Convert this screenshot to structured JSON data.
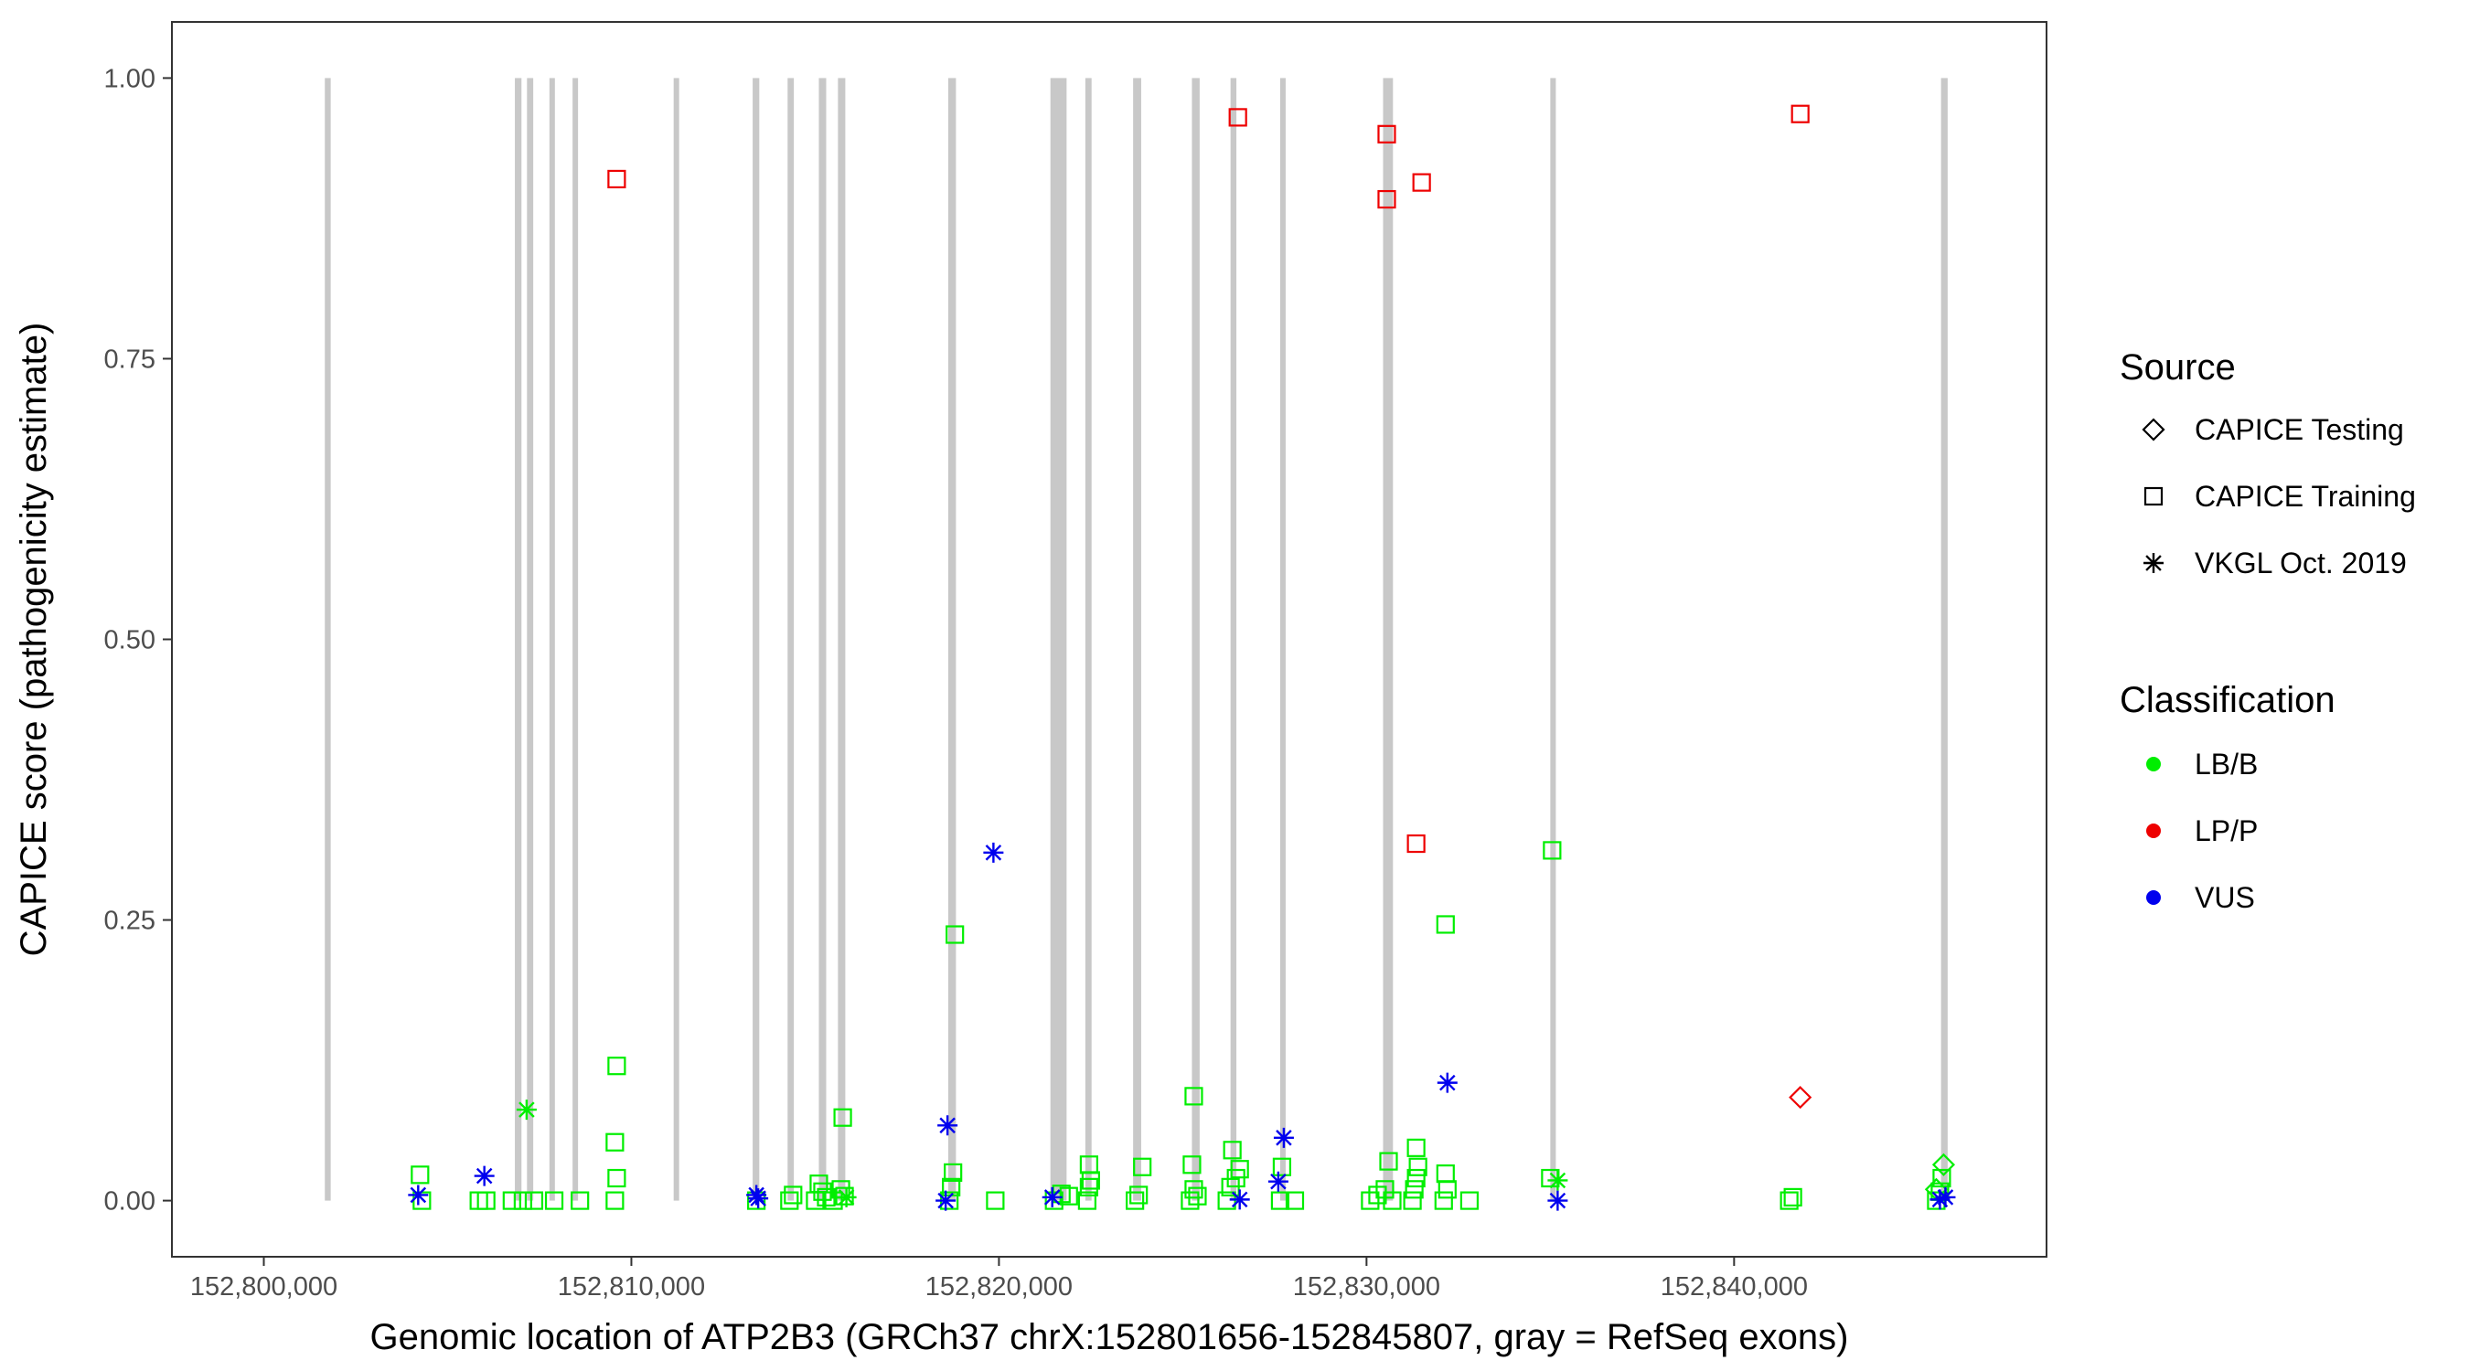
{
  "chart_data": {
    "type": "scatter",
    "xlabel": "Genomic location of ATP2B3 (GRCh37 chrX:152801656-152845807, gray = RefSeq exons)",
    "ylabel": "CAPICE score (pathogenicity estimate)",
    "xlim": [
      152797500,
      152848500
    ],
    "ylim": [
      -0.05,
      1.05
    ],
    "x_ticks": [
      152800000,
      152810000,
      152820000,
      152830000,
      152840000
    ],
    "x_tick_labels": [
      "152,800,000",
      "152,810,000",
      "152,820,000",
      "152,830,000",
      "152,840,000"
    ],
    "y_ticks": [
      0,
      0.25,
      0.5,
      0.75,
      1.0
    ],
    "y_tick_labels": [
      "0.00",
      "0.25",
      "0.50",
      "0.75",
      "1.00"
    ],
    "grid": false,
    "exons": [
      [
        152801660,
        152801820
      ],
      [
        152806830,
        152807010
      ],
      [
        152807160,
        152807330
      ],
      [
        152807770,
        152807900
      ],
      [
        152808400,
        152808530
      ],
      [
        152811150,
        152811220
      ],
      [
        152813300,
        152813480
      ],
      [
        152814250,
        152814420
      ],
      [
        152815100,
        152815300
      ],
      [
        152815620,
        152815820
      ],
      [
        152818620,
        152818830
      ],
      [
        152821400,
        152821840
      ],
      [
        152822350,
        152822520
      ],
      [
        152823650,
        152823870
      ],
      [
        152825250,
        152825460
      ],
      [
        152826300,
        152826460
      ],
      [
        152827650,
        152827800
      ],
      [
        152830450,
        152830720
      ],
      [
        152835000,
        152835150
      ],
      [
        152845630,
        152845810
      ]
    ],
    "legend": [
      {
        "title": "Source",
        "entries": [
          {
            "label": "CAPICE Testing",
            "shape": "diamond"
          },
          {
            "label": "CAPICE Training",
            "shape": "square"
          },
          {
            "label": "VKGL Oct. 2019",
            "shape": "asterisk"
          }
        ]
      },
      {
        "title": "Classification",
        "entries": [
          {
            "label": "LB/B",
            "color": "#00ee00"
          },
          {
            "label": "LP/P",
            "color": "#ee0000"
          },
          {
            "label": "VUS",
            "color": "#0000ee"
          }
        ]
      }
    ],
    "colors": {
      "LB/B": "#00ee00",
      "LP/P": "#ee0000",
      "VUS": "#0000ee"
    },
    "series": [
      {
        "source": "CAPICE Training",
        "classification": "LP/P",
        "points": [
          [
            152809600,
            0.91
          ],
          [
            152826500,
            0.965
          ],
          [
            152830550,
            0.95
          ],
          [
            152830550,
            0.892
          ],
          [
            152831500,
            0.907
          ],
          [
            152841800,
            0.968
          ],
          [
            152831350,
            0.318
          ]
        ]
      },
      {
        "source": "CAPICE Testing",
        "classification": "LP/P",
        "points": [
          [
            152841800,
            0.092
          ]
        ]
      },
      {
        "source": "CAPICE Training",
        "classification": "LB/B",
        "points": [
          [
            152804250,
            0.023
          ],
          [
            152804300,
            0.0
          ],
          [
            152805850,
            0.0
          ],
          [
            152806050,
            0.0
          ],
          [
            152806750,
            0.0
          ],
          [
            152807050,
            0.0
          ],
          [
            152807350,
            0.0
          ],
          [
            152807900,
            0.0
          ],
          [
            152808600,
            0.0
          ],
          [
            152809550,
            0.0
          ],
          [
            152809600,
            0.02
          ],
          [
            152809550,
            0.052
          ],
          [
            152809600,
            0.12
          ],
          [
            152813400,
            0.0
          ],
          [
            152814300,
            0.0
          ],
          [
            152814400,
            0.005
          ],
          [
            152815000,
            0.0
          ],
          [
            152815100,
            0.015
          ],
          [
            152815200,
            0.008
          ],
          [
            152815300,
            0.003
          ],
          [
            152815500,
            0.0
          ],
          [
            152815700,
            0.01
          ],
          [
            152815800,
            0.004
          ],
          [
            152815750,
            0.074
          ],
          [
            152818650,
            0.0
          ],
          [
            152818700,
            0.012
          ],
          [
            152818750,
            0.025
          ],
          [
            152818800,
            0.237
          ],
          [
            152819900,
            0.0
          ],
          [
            152821500,
            0.0
          ],
          [
            152821700,
            0.006
          ],
          [
            152821900,
            0.004
          ],
          [
            152822400,
            0.0
          ],
          [
            152822450,
            0.012
          ],
          [
            152822500,
            0.018
          ],
          [
            152822450,
            0.032
          ],
          [
            152823700,
            0.0
          ],
          [
            152823800,
            0.005
          ],
          [
            152823900,
            0.03
          ],
          [
            152825200,
            0.0
          ],
          [
            152825300,
            0.01
          ],
          [
            152825250,
            0.032
          ],
          [
            152825300,
            0.093
          ],
          [
            152825400,
            0.004
          ],
          [
            152826200,
            0.0
          ],
          [
            152826300,
            0.012
          ],
          [
            152826350,
            0.045
          ],
          [
            152826450,
            0.02
          ],
          [
            152826550,
            0.028
          ],
          [
            152827650,
            0.0
          ],
          [
            152827700,
            0.03
          ],
          [
            152828050,
            0.0
          ],
          [
            152830100,
            0.0
          ],
          [
            152830300,
            0.005
          ],
          [
            152830500,
            0.01
          ],
          [
            152830600,
            0.035
          ],
          [
            152830700,
            0.0
          ],
          [
            152831250,
            0.0
          ],
          [
            152831300,
            0.01
          ],
          [
            152831350,
            0.02
          ],
          [
            152831400,
            0.03
          ],
          [
            152831350,
            0.047
          ],
          [
            152832100,
            0.0
          ],
          [
            152832200,
            0.01
          ],
          [
            152832150,
            0.024
          ],
          [
            152832150,
            0.246
          ],
          [
            152832800,
            0.0
          ],
          [
            152835000,
            0.02
          ],
          [
            152835050,
            0.312
          ],
          [
            152841500,
            0.0
          ],
          [
            152841600,
            0.003
          ],
          [
            152845500,
            0.0
          ],
          [
            152845600,
            0.008
          ],
          [
            152845650,
            0.02
          ]
        ]
      },
      {
        "source": "CAPICE Testing",
        "classification": "LB/B",
        "points": [
          [
            152845700,
            0.032
          ],
          [
            152845500,
            0.01
          ]
        ]
      },
      {
        "source": "VKGL Oct. 2019",
        "classification": "LB/B",
        "points": [
          [
            152807150,
            0.081
          ],
          [
            152835200,
            0.018
          ],
          [
            152815850,
            0.003
          ]
        ]
      },
      {
        "source": "VKGL Oct. 2019",
        "classification": "VUS",
        "points": [
          [
            152804200,
            0.005
          ],
          [
            152806000,
            0.022
          ],
          [
            152813400,
            0.005
          ],
          [
            152813450,
            0.002
          ],
          [
            152818550,
            0.0
          ],
          [
            152818600,
            0.067
          ],
          [
            152819850,
            0.31
          ],
          [
            152821450,
            0.003
          ],
          [
            152826550,
            0.001
          ],
          [
            152827600,
            0.017
          ],
          [
            152827750,
            0.056
          ],
          [
            152832200,
            0.105
          ],
          [
            152835200,
            0.0
          ],
          [
            152845600,
            0.001
          ],
          [
            152845750,
            0.003
          ]
        ]
      }
    ]
  }
}
